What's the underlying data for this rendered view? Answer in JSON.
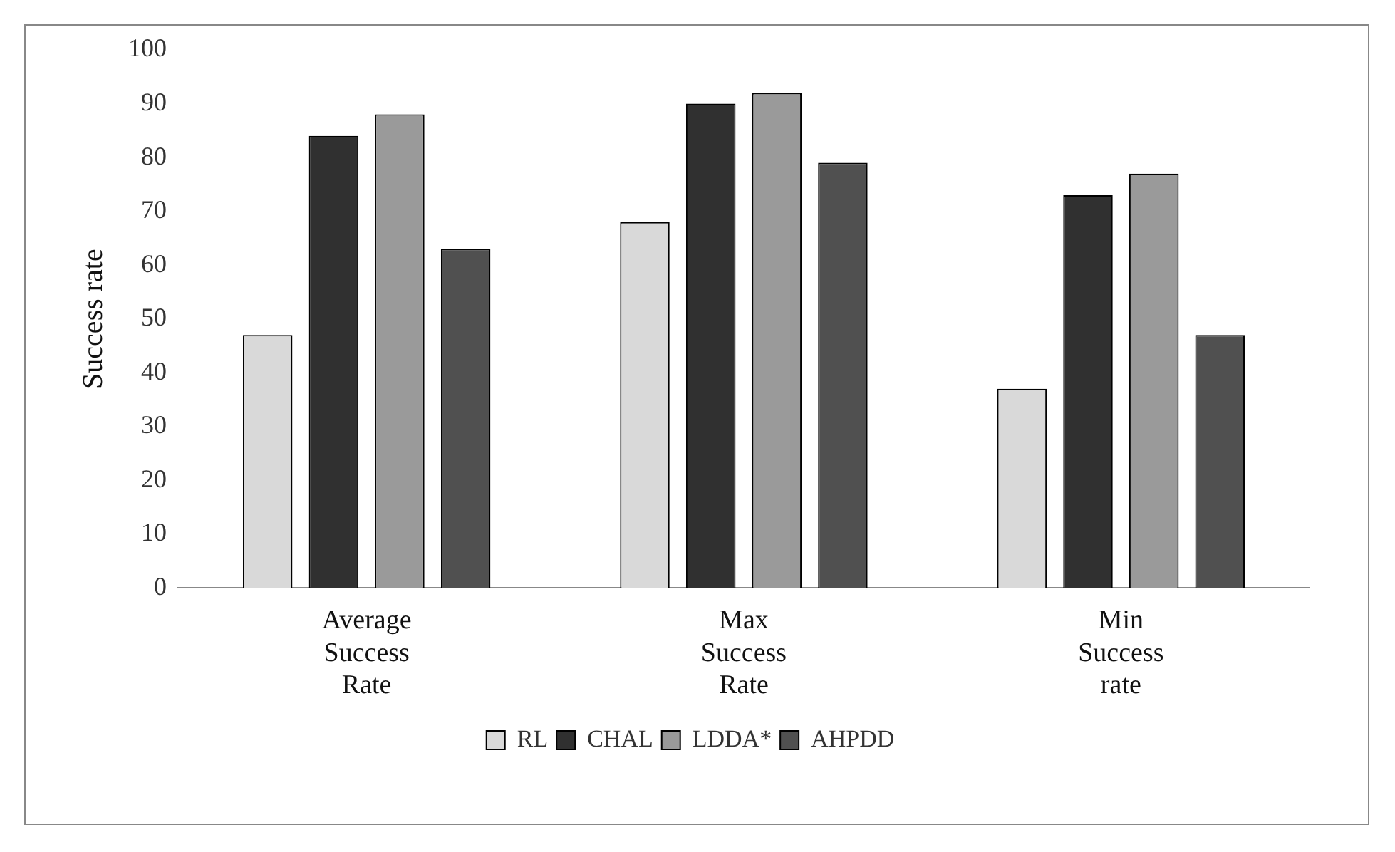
{
  "chart_data": {
    "type": "bar",
    "ylabel": "Success rate",
    "categories": [
      "Average Success Rate",
      "Max Success Rate",
      "Min Success rate"
    ],
    "series": [
      {
        "name": "RL",
        "color": "#d9d9d9",
        "values": [
          47,
          68,
          37
        ]
      },
      {
        "name": "CHAL",
        "color": "#303030",
        "values": [
          84,
          90,
          73
        ]
      },
      {
        "name": "LDDA*",
        "color": "#9a9a9a",
        "values": [
          88,
          92,
          77
        ]
      },
      {
        "name": "AHPDD",
        "color": "#505050",
        "values": [
          63,
          79,
          47
        ]
      }
    ],
    "ylim": [
      0,
      100
    ],
    "yticks": [
      0,
      10,
      20,
      30,
      40,
      50,
      60,
      70,
      80,
      90,
      100
    ],
    "grid": false,
    "legend": "bottom"
  }
}
